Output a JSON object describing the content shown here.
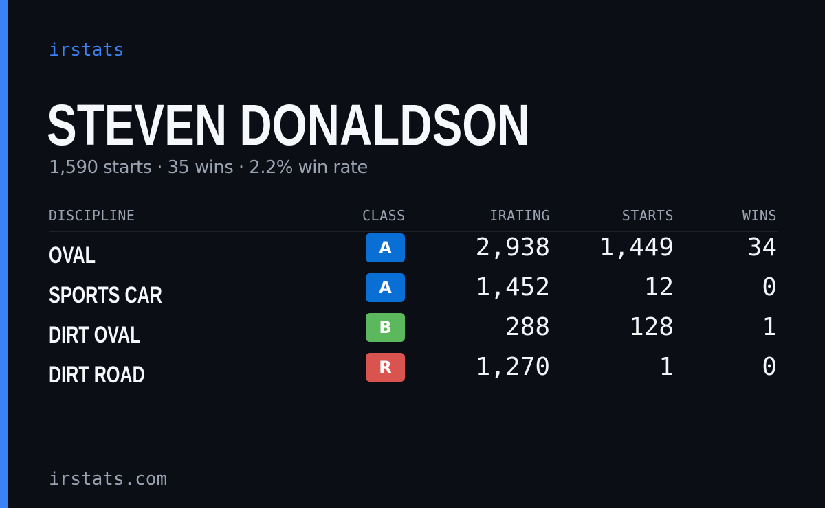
{
  "colors": {
    "background": "#0b0e15",
    "accent": "#3b82f6",
    "class_a": "#0a6fd4",
    "class_b": "#5cb85c",
    "class_r": "#d9534f"
  },
  "brand": "irstats",
  "player": {
    "name": "STEVEN DONALDSON",
    "summary": "1,590 starts · 35 wins · 2.2% win rate"
  },
  "table": {
    "headers": {
      "discipline": "DISCIPLINE",
      "class": "CLASS",
      "irating": "IRATING",
      "starts": "STARTS",
      "wins": "WINS"
    },
    "rows": [
      {
        "discipline": "OVAL",
        "class": "A",
        "class_color": "#0a6fd4",
        "irating": "2,938",
        "starts": "1,449",
        "wins": "34"
      },
      {
        "discipline": "SPORTS CAR",
        "class": "A",
        "class_color": "#0a6fd4",
        "irating": "1,452",
        "starts": "12",
        "wins": "0"
      },
      {
        "discipline": "DIRT OVAL",
        "class": "B",
        "class_color": "#5cb85c",
        "irating": "288",
        "starts": "128",
        "wins": "1"
      },
      {
        "discipline": "DIRT ROAD",
        "class": "R",
        "class_color": "#d9534f",
        "irating": "1,270",
        "starts": "1",
        "wins": "0"
      }
    ]
  },
  "footer": "irstats.com"
}
